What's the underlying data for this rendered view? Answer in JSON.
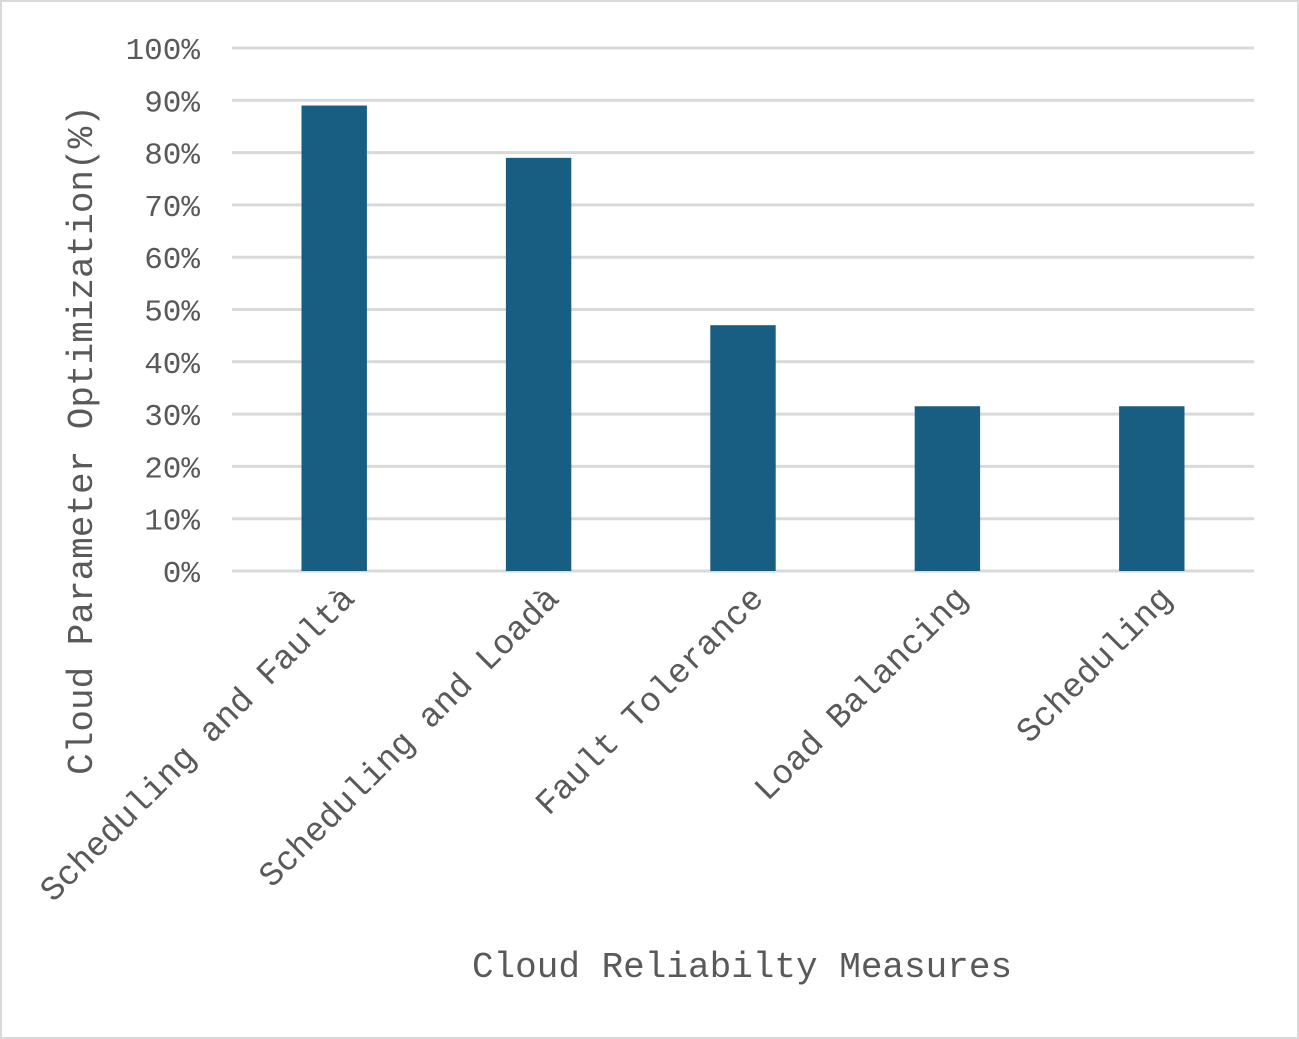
{
  "chart_data": {
    "type": "bar",
    "categories": [
      "Scheduling and Faultà",
      "Scheduling and Loadà",
      "Fault Tolerance",
      "Load Balancing",
      "Scheduling"
    ],
    "values": [
      89,
      79,
      47,
      31.5,
      31.5
    ],
    "xlabel": "Cloud Reliabilty Measures",
    "ylabel": "Cloud Parameter Optimization(%)",
    "ylim": [
      0,
      100
    ],
    "yticks": [
      "0%",
      "10%",
      "20%",
      "30%",
      "40%",
      "50%",
      "60%",
      "70%",
      "80%",
      "90%",
      "100%"
    ],
    "grid": true,
    "legend": "none",
    "bar_color": "#175e82",
    "grid_color": "#d9d9d9",
    "text_color": "#595959"
  }
}
